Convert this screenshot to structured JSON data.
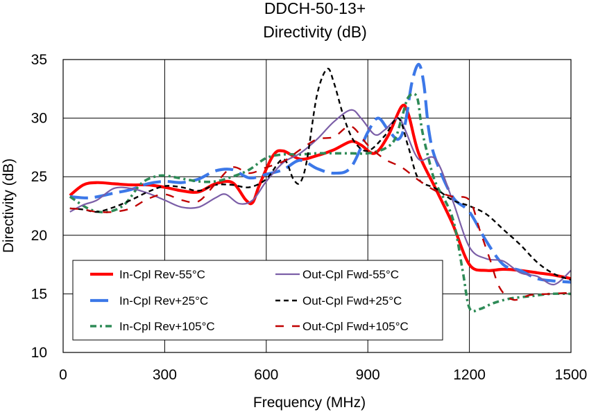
{
  "chart_data": {
    "type": "line",
    "title_lines": [
      "DDCH-50-13+",
      "Directivity (dB)"
    ],
    "xlabel": "Frequency (MHz)",
    "ylabel": "Directivity (dB)",
    "xlim": [
      0,
      1500
    ],
    "ylim": [
      10,
      35
    ],
    "xticks": [
      0,
      300,
      600,
      900,
      1200,
      1500
    ],
    "yticks": [
      10,
      15,
      20,
      25,
      30,
      35
    ],
    "grid": true,
    "legend_position": "bottom-left",
    "series": [
      {
        "name": "In-Cpl Rev-55°C",
        "color": "#ff0000",
        "style": "solid",
        "points": [
          [
            20,
            23.4
          ],
          [
            60,
            24.3
          ],
          [
            100,
            24.5
          ],
          [
            150,
            24.4
          ],
          [
            200,
            24.3
          ],
          [
            250,
            24.3
          ],
          [
            300,
            24.1
          ],
          [
            350,
            23.8
          ],
          [
            400,
            23.7
          ],
          [
            450,
            24.4
          ],
          [
            500,
            24.5
          ],
          [
            540,
            23.0
          ],
          [
            560,
            22.8
          ],
          [
            580,
            24.3
          ],
          [
            620,
            26.8
          ],
          [
            650,
            27.2
          ],
          [
            700,
            26.5
          ],
          [
            750,
            26.8
          ],
          [
            800,
            27.3
          ],
          [
            850,
            28.0
          ],
          [
            880,
            27.7
          ],
          [
            920,
            27.0
          ],
          [
            960,
            28.5
          ],
          [
            1000,
            31.0
          ],
          [
            1020,
            30.3
          ],
          [
            1050,
            27.0
          ],
          [
            1100,
            24.0
          ],
          [
            1150,
            21.0
          ],
          [
            1200,
            17.5
          ],
          [
            1250,
            17.0
          ],
          [
            1300,
            17.1
          ],
          [
            1350,
            17.0
          ],
          [
            1400,
            16.8
          ],
          [
            1450,
            16.6
          ],
          [
            1500,
            16.3
          ]
        ]
      },
      {
        "name": "In-Cpl Rev+25°C",
        "color": "#3c78e8",
        "style": "longdash",
        "points": [
          [
            20,
            23.3
          ],
          [
            80,
            23.2
          ],
          [
            150,
            23.6
          ],
          [
            200,
            23.9
          ],
          [
            250,
            24.4
          ],
          [
            300,
            24.6
          ],
          [
            350,
            24.5
          ],
          [
            400,
            24.8
          ],
          [
            450,
            25.5
          ],
          [
            500,
            25.6
          ],
          [
            550,
            24.9
          ],
          [
            600,
            25.2
          ],
          [
            650,
            25.6
          ],
          [
            700,
            26.4
          ],
          [
            750,
            25.7
          ],
          [
            800,
            25.3
          ],
          [
            850,
            25.8
          ],
          [
            900,
            28.8
          ],
          [
            930,
            30.0
          ],
          [
            960,
            29.0
          ],
          [
            990,
            28.2
          ],
          [
            1010,
            29.5
          ],
          [
            1030,
            33.0
          ],
          [
            1050,
            34.6
          ],
          [
            1065,
            33.0
          ],
          [
            1080,
            29.0
          ],
          [
            1100,
            26.5
          ],
          [
            1150,
            23.3
          ],
          [
            1200,
            22.0
          ],
          [
            1250,
            19.5
          ],
          [
            1300,
            17.5
          ],
          [
            1350,
            17.0
          ],
          [
            1400,
            16.3
          ],
          [
            1450,
            16.1
          ],
          [
            1500,
            16.0
          ]
        ]
      },
      {
        "name": "In-Cpl Rev+105°C",
        "color": "#2e8b57",
        "style": "dashdot",
        "points": [
          [
            20,
            23.3
          ],
          [
            80,
            22.2
          ],
          [
            130,
            22.0
          ],
          [
            180,
            22.6
          ],
          [
            230,
            24.4
          ],
          [
            270,
            25.0
          ],
          [
            300,
            25.1
          ],
          [
            340,
            24.9
          ],
          [
            400,
            24.6
          ],
          [
            450,
            24.6
          ],
          [
            500,
            25.0
          ],
          [
            550,
            25.6
          ],
          [
            600,
            26.6
          ],
          [
            650,
            26.9
          ],
          [
            700,
            26.9
          ],
          [
            750,
            27.0
          ],
          [
            800,
            27.0
          ],
          [
            850,
            27.0
          ],
          [
            900,
            27.0
          ],
          [
            950,
            27.4
          ],
          [
            980,
            28.2
          ],
          [
            1000,
            30.0
          ],
          [
            1020,
            31.8
          ],
          [
            1045,
            31.8
          ],
          [
            1060,
            29.0
          ],
          [
            1080,
            26.5
          ],
          [
            1100,
            24.5
          ],
          [
            1150,
            21.5
          ],
          [
            1180,
            17.0
          ],
          [
            1200,
            13.8
          ],
          [
            1230,
            13.7
          ],
          [
            1270,
            14.2
          ],
          [
            1320,
            14.6
          ],
          [
            1380,
            14.8
          ],
          [
            1440,
            15.0
          ],
          [
            1500,
            15.0
          ]
        ]
      },
      {
        "name": "Out-Cpl Fwd-55°C",
        "color": "#7b5ea7",
        "style": "solid-thin",
        "points": [
          [
            20,
            22.0
          ],
          [
            60,
            22.6
          ],
          [
            100,
            23.0
          ],
          [
            150,
            24.0
          ],
          [
            200,
            24.0
          ],
          [
            250,
            23.6
          ],
          [
            300,
            23.0
          ],
          [
            350,
            22.4
          ],
          [
            400,
            22.4
          ],
          [
            450,
            23.2
          ],
          [
            480,
            23.5
          ],
          [
            520,
            22.7
          ],
          [
            560,
            23.0
          ],
          [
            600,
            24.6
          ],
          [
            650,
            26.2
          ],
          [
            700,
            27.0
          ],
          [
            750,
            28.2
          ],
          [
            800,
            29.7
          ],
          [
            850,
            30.7
          ],
          [
            880,
            30.0
          ],
          [
            920,
            28.6
          ],
          [
            950,
            29.0
          ],
          [
            990,
            30.0
          ],
          [
            1010,
            29.0
          ],
          [
            1050,
            26.5
          ],
          [
            1100,
            26.5
          ],
          [
            1150,
            23.0
          ],
          [
            1200,
            19.0
          ],
          [
            1250,
            18.0
          ],
          [
            1300,
            17.8
          ],
          [
            1350,
            16.8
          ],
          [
            1400,
            16.5
          ],
          [
            1450,
            15.8
          ],
          [
            1500,
            17.0
          ]
        ]
      },
      {
        "name": "Out-Cpl Fwd+25°C",
        "color": "#000000",
        "style": "shortdash",
        "points": [
          [
            20,
            22.3
          ],
          [
            60,
            22.2
          ],
          [
            100,
            22.0
          ],
          [
            150,
            22.4
          ],
          [
            200,
            23.0
          ],
          [
            250,
            23.7
          ],
          [
            300,
            24.2
          ],
          [
            350,
            24.1
          ],
          [
            400,
            23.8
          ],
          [
            450,
            24.3
          ],
          [
            500,
            24.3
          ],
          [
            550,
            24.1
          ],
          [
            600,
            24.8
          ],
          [
            650,
            26.5
          ],
          [
            680,
            24.8
          ],
          [
            700,
            24.5
          ],
          [
            720,
            26.4
          ],
          [
            750,
            32.0
          ],
          [
            780,
            34.2
          ],
          [
            800,
            33.0
          ],
          [
            830,
            30.0
          ],
          [
            860,
            28.0
          ],
          [
            900,
            27.2
          ],
          [
            950,
            28.5
          ],
          [
            990,
            30.0
          ],
          [
            1020,
            27.5
          ],
          [
            1050,
            24.8
          ],
          [
            1100,
            24.0
          ],
          [
            1150,
            23.0
          ],
          [
            1200,
            22.5
          ],
          [
            1250,
            21.8
          ],
          [
            1300,
            20.5
          ],
          [
            1350,
            19.2
          ],
          [
            1400,
            17.7
          ],
          [
            1450,
            16.7
          ],
          [
            1500,
            16.2
          ]
        ]
      },
      {
        "name": "Out-Cpl Fwd+105°C",
        "color": "#c00000",
        "style": "mediumdash",
        "points": [
          [
            20,
            22.3
          ],
          [
            60,
            22.2
          ],
          [
            100,
            22.0
          ],
          [
            150,
            22.0
          ],
          [
            200,
            22.3
          ],
          [
            250,
            23.1
          ],
          [
            300,
            23.5
          ],
          [
            350,
            23.0
          ],
          [
            400,
            22.9
          ],
          [
            450,
            24.4
          ],
          [
            500,
            25.8
          ],
          [
            550,
            25.3
          ],
          [
            600,
            25.8
          ],
          [
            650,
            26.3
          ],
          [
            700,
            27.3
          ],
          [
            750,
            28.2
          ],
          [
            800,
            28.4
          ],
          [
            850,
            29.3
          ],
          [
            900,
            27.7
          ],
          [
            950,
            26.5
          ],
          [
            1000,
            25.8
          ],
          [
            1050,
            24.7
          ],
          [
            1100,
            23.8
          ],
          [
            1150,
            23.3
          ],
          [
            1200,
            23.0
          ],
          [
            1230,
            20.5
          ],
          [
            1260,
            18.0
          ],
          [
            1290,
            15.5
          ],
          [
            1330,
            14.5
          ],
          [
            1380,
            14.9
          ],
          [
            1440,
            15.0
          ],
          [
            1500,
            15.1
          ]
        ]
      }
    ]
  }
}
